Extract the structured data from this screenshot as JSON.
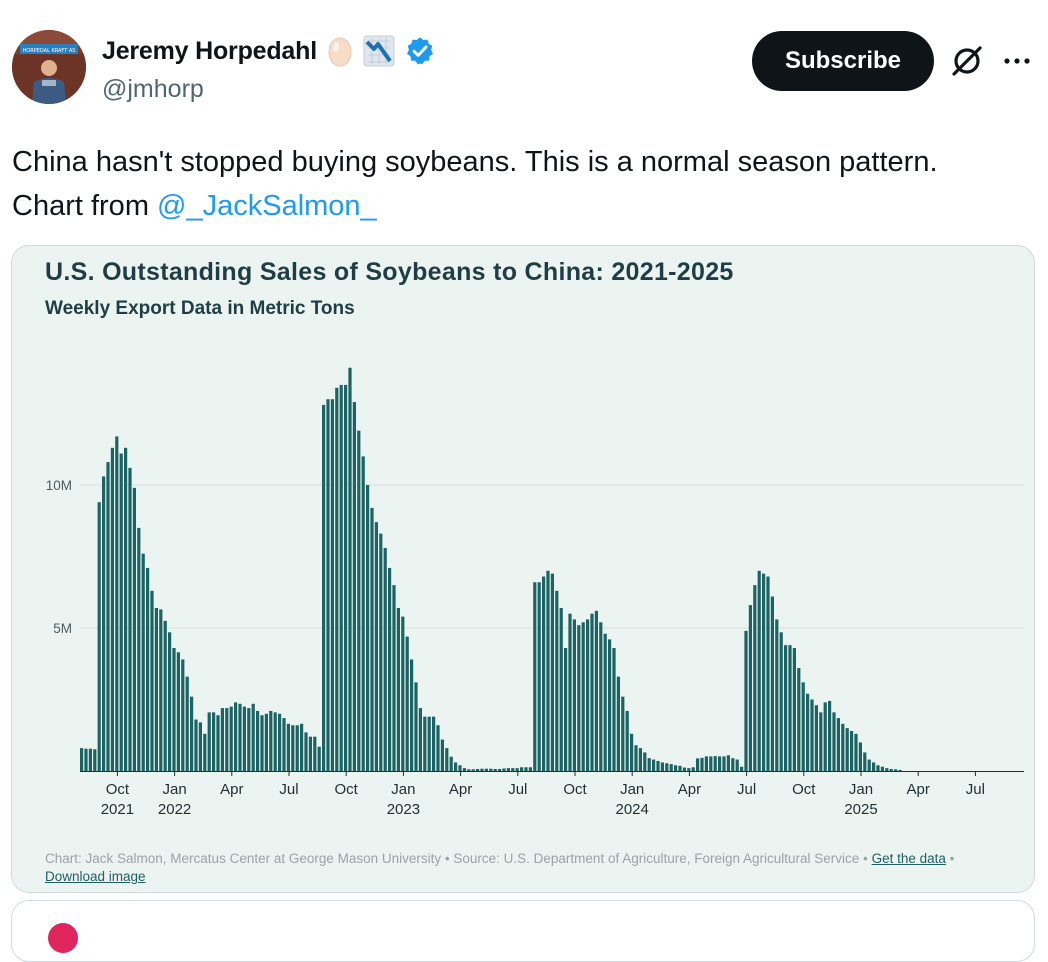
{
  "author": {
    "name": "Jeremy Horpedahl",
    "handle": "@jmhorp",
    "emoji_badges": [
      "egg-emoji",
      "chart-decreasing-emoji"
    ],
    "verified_color": "#1d9bf0",
    "avatar_sign": "HORPEDAL KRAFT AS"
  },
  "actions": {
    "subscribe_label": "Subscribe",
    "grok_icon": "grok-icon",
    "more_icon": "more-icon"
  },
  "tweet": {
    "text_line1": "China hasn't stopped buying soybeans. This is a normal season pattern.",
    "text_prefix": "Chart from ",
    "mention": "@_JackSalmon_"
  },
  "card": {
    "footer_text": "Chart: Jack Salmon, Mercatus Center at George Mason University • Source: U.S. Department of Agriculture, Foreign Agricultural Service •",
    "get_data_label": "Get the data",
    "separator": "•",
    "download_label": "Download image"
  },
  "chart_data": {
    "type": "bar",
    "title": "U.S. Outstanding Sales of Soybeans to China: 2021-2025",
    "subtitle": "Weekly Export Data in Metric Tons",
    "xlabel": "",
    "ylabel": "",
    "ylim": [
      0,
      17000000
    ],
    "yticks": [
      {
        "value": 5000000,
        "label": "5M"
      },
      {
        "value": 10000000,
        "label": "10M"
      }
    ],
    "grid": true,
    "bar_color": "#1c6364",
    "x_ticks": [
      {
        "week": 8.5,
        "label": "Oct",
        "year": "2021"
      },
      {
        "week": 21.5,
        "label": "Jan",
        "year": "2022"
      },
      {
        "week": 34.5,
        "label": "Apr",
        "year": ""
      },
      {
        "week": 47.5,
        "label": "Jul",
        "year": ""
      },
      {
        "week": 60.5,
        "label": "Oct",
        "year": ""
      },
      {
        "week": 73.5,
        "label": "Jan",
        "year": "2023"
      },
      {
        "week": 86.5,
        "label": "Apr",
        "year": ""
      },
      {
        "week": 99.5,
        "label": "Jul",
        "year": ""
      },
      {
        "week": 112.5,
        "label": "Oct",
        "year": ""
      },
      {
        "week": 125.5,
        "label": "Jan",
        "year": "2024"
      },
      {
        "week": 138.5,
        "label": "Apr",
        "year": ""
      },
      {
        "week": 151.5,
        "label": "Jul",
        "year": ""
      },
      {
        "week": 164.5,
        "label": "Oct",
        "year": ""
      },
      {
        "week": 177.5,
        "label": "Jan",
        "year": "2025"
      },
      {
        "week": 190.5,
        "label": "Apr",
        "year": ""
      },
      {
        "week": 203.5,
        "label": "Jul",
        "year": ""
      }
    ],
    "values": [
      800000,
      780000,
      780000,
      760000,
      9400000,
      10300000,
      10800000,
      11300000,
      11700000,
      11100000,
      11300000,
      10600000,
      9900000,
      8500000,
      7600000,
      7100000,
      6300000,
      5700000,
      5650000,
      5250000,
      4850000,
      4300000,
      4150000,
      3900000,
      3300000,
      2600000,
      1800000,
      1700000,
      1300000,
      2050000,
      2050000,
      1950000,
      2200000,
      2200000,
      2250000,
      2400000,
      2350000,
      2250000,
      2200000,
      2350000,
      2100000,
      1950000,
      2000000,
      2100000,
      2050000,
      2000000,
      1850000,
      1650000,
      1600000,
      1600000,
      1650000,
      1350000,
      1200000,
      1200000,
      850000,
      12800000,
      13000000,
      13000000,
      13400000,
      13500000,
      13500000,
      14100000,
      12900000,
      11900000,
      11000000,
      10000000,
      9200000,
      8700000,
      8300000,
      7800000,
      7100000,
      6500000,
      5700000,
      5400000,
      4700000,
      3900000,
      3100000,
      2200000,
      1900000,
      1900000,
      1900000,
      1600000,
      1100000,
      800000,
      500000,
      300000,
      200000,
      100000,
      60000,
      60000,
      70000,
      80000,
      80000,
      80000,
      70000,
      70000,
      90000,
      100000,
      100000,
      100000,
      130000,
      130000,
      130000,
      6600000,
      6600000,
      6800000,
      7000000,
      6900000,
      6300000,
      5700000,
      4300000,
      5500000,
      5300000,
      5100000,
      5200000,
      5300000,
      5500000,
      5600000,
      5200000,
      4800000,
      4600000,
      4300000,
      3300000,
      2600000,
      2100000,
      1300000,
      900000,
      800000,
      650000,
      450000,
      400000,
      350000,
      300000,
      270000,
      240000,
      200000,
      180000,
      120000,
      100000,
      130000,
      440000,
      460000,
      510000,
      510000,
      520000,
      510000,
      510000,
      550000,
      450000,
      400000,
      150000,
      4900000,
      5800000,
      6500000,
      7000000,
      6900000,
      6800000,
      6100000,
      5300000,
      4850000,
      4400000,
      4400000,
      4300000,
      3600000,
      3100000,
      2700000,
      2500000,
      2300000,
      2050000,
      2400000,
      2450000,
      2050000,
      1850000,
      1650000,
      1500000,
      1400000,
      1300000,
      1000000,
      650000,
      400000,
      300000,
      200000,
      150000,
      100000,
      70000,
      60000,
      40000
    ]
  }
}
